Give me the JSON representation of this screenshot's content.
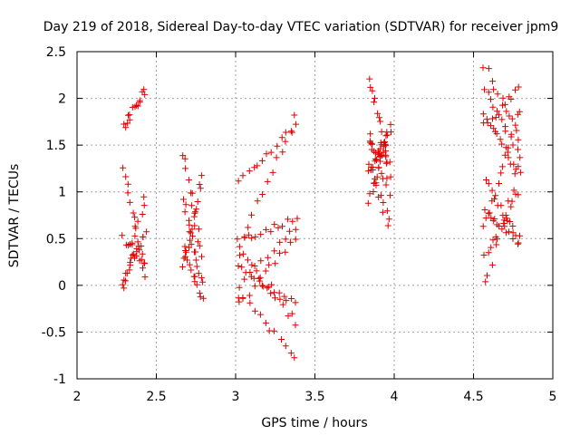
{
  "chart_data": {
    "type": "scatter",
    "title": "Day 219 of 2018, Sidereal Day-to-day VTEC variation (SDTVAR) for receiver jpm9",
    "xlabel": "GPS time / hours",
    "ylabel": "SDTVAR / TECUs",
    "xlim": [
      2,
      5
    ],
    "ylim": [
      -1,
      2.5
    ],
    "xticks": [
      "2",
      "2.5",
      "3",
      "3.5",
      "4",
      "4.5",
      "5"
    ],
    "yticks": [
      "-1",
      "-0.5",
      "0",
      "0.5",
      "1",
      "1.5",
      "2",
      "2.5"
    ],
    "grid": true,
    "marker": "+",
    "color": "#e00000",
    "clusters": [
      {
        "x_start": 2.29,
        "x_end": 2.43,
        "tracks": [
          {
            "y0": 1.7,
            "y1": 2.1
          },
          {
            "y0": 1.27,
            "y1": 0.1
          },
          {
            "y0": -0.03,
            "y1": 0.98
          },
          {
            "y0": 0.0,
            "y1": 0.6
          },
          {
            "y0": 0.5,
            "y1": 0.22
          }
        ]
      },
      {
        "x_start": 2.67,
        "x_end": 2.79,
        "tracks": [
          {
            "y0": 1.4,
            "y1": 0.3
          },
          {
            "y0": 0.2,
            "y1": 1.15
          },
          {
            "y0": 0.4,
            "y1": -0.15
          },
          {
            "y0": 0.9,
            "y1": 0.0
          }
        ]
      },
      {
        "x_start": 3.02,
        "x_end": 3.38,
        "tracks": [
          {
            "y0": 0.4,
            "y1": 1.8
          },
          {
            "y0": 0.0,
            "y1": 0.6
          },
          {
            "y0": -0.2,
            "y1": 0.5
          },
          {
            "y0": 0.5,
            "y1": 0.7
          },
          {
            "y0": 0.35,
            "y1": -0.4
          },
          {
            "y0": -0.1,
            "y1": -0.75
          },
          {
            "y0": 0.2,
            "y1": -0.2
          },
          {
            "y0": 1.1,
            "y1": 1.7
          }
        ]
      },
      {
        "x_start": 3.84,
        "x_end": 3.97,
        "tracks": [
          {
            "y0": 2.23,
            "y1": 1.2
          },
          {
            "y0": 0.9,
            "y1": 1.7
          },
          {
            "y0": 1.2,
            "y1": 1.6
          },
          {
            "y0": 1.6,
            "y1": 1.0
          },
          {
            "y0": 1.3,
            "y1": 0.65
          },
          {
            "y0": 1.5,
            "y1": 1.35
          }
        ]
      },
      {
        "x_start": 4.57,
        "x_end": 4.79,
        "tracks": [
          {
            "y0": 2.35,
            "y1": 1.6
          },
          {
            "y0": 0.0,
            "y1": 1.3
          },
          {
            "y0": 1.7,
            "y1": 2.1
          },
          {
            "y0": 1.1,
            "y1": 0.5
          },
          {
            "y0": 0.3,
            "y1": 1.0
          },
          {
            "y0": 1.8,
            "y1": 1.2
          },
          {
            "y0": 0.6,
            "y1": 1.9
          },
          {
            "y0": 2.1,
            "y1": 1.4
          },
          {
            "y0": 0.8,
            "y1": 0.45
          }
        ]
      }
    ]
  }
}
